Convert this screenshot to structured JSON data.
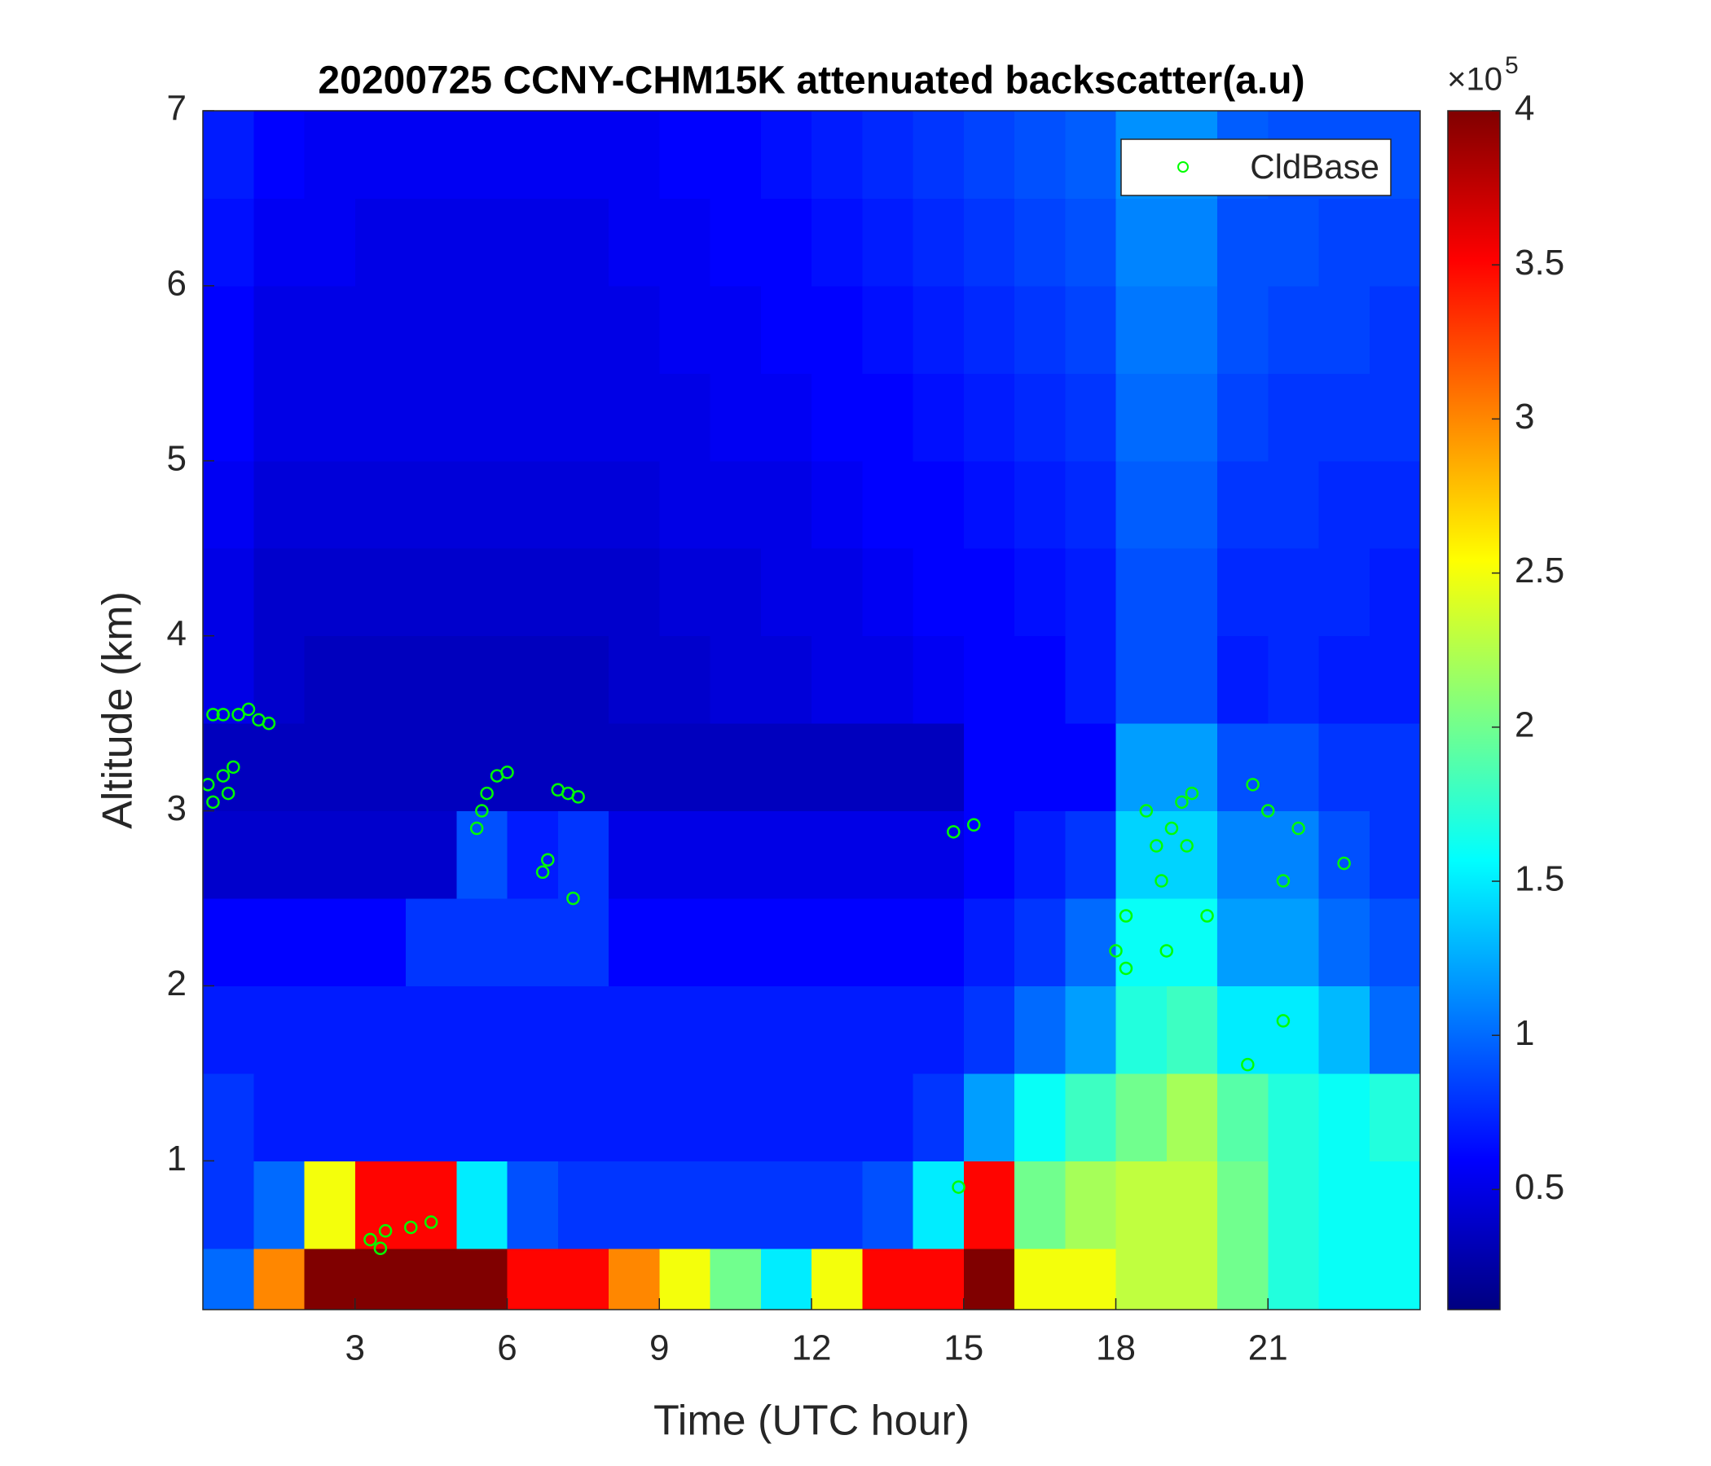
{
  "chart_data": {
    "type": "heatmap",
    "title": "20200725 CCNY-CHM15K attenuated backscatter(a.u)",
    "xlabel": "Time (UTC hour)",
    "ylabel": "Altitude (km)",
    "xlim": [
      0,
      24
    ],
    "ylim": [
      0.15,
      7
    ],
    "xticks": [
      3,
      6,
      9,
      12,
      15,
      18,
      21
    ],
    "yticks": [
      1,
      2,
      3,
      4,
      5,
      6,
      7
    ],
    "x_bins": [
      0,
      1,
      2,
      3,
      4,
      5,
      6,
      7,
      8,
      9,
      10,
      11,
      12,
      13,
      14,
      15,
      16,
      17,
      18,
      19,
      20,
      21,
      22,
      23,
      24
    ],
    "y_bins": [
      0.15,
      0.5,
      1,
      1.5,
      2,
      2.5,
      3,
      3.5,
      4,
      4.5,
      5,
      5.5,
      6,
      6.5,
      7
    ],
    "z": [
      [
        1.0,
        3.0,
        4,
        4,
        4,
        4,
        3.5,
        3.5,
        3,
        2.5,
        2,
        1.5,
        2.5,
        3.5,
        3.5,
        4,
        2.5,
        2.5,
        2.3,
        2.3,
        2.0,
        1.7,
        1.6,
        1.6
      ],
      [
        0.8,
        1.0,
        2.5,
        3.5,
        3.5,
        1.5,
        0.9,
        0.8,
        0.8,
        0.8,
        0.8,
        0.8,
        0.8,
        0.9,
        1.5,
        3.5,
        2.0,
        2.2,
        2.3,
        2.3,
        2.0,
        1.7,
        1.6,
        1.6
      ],
      [
        0.8,
        0.7,
        0.7,
        0.7,
        0.7,
        0.7,
        0.7,
        0.7,
        0.7,
        0.7,
        0.7,
        0.7,
        0.7,
        0.7,
        0.8,
        1.2,
        1.6,
        1.8,
        2.0,
        2.2,
        1.9,
        1.7,
        1.6,
        1.7
      ],
      [
        0.7,
        0.7,
        0.7,
        0.7,
        0.7,
        0.7,
        0.7,
        0.7,
        0.7,
        0.7,
        0.7,
        0.7,
        0.7,
        0.7,
        0.7,
        0.8,
        1.0,
        1.2,
        1.7,
        1.8,
        1.5,
        1.5,
        1.3,
        1.0
      ],
      [
        0.6,
        0.6,
        0.6,
        0.6,
        0.8,
        0.8,
        0.8,
        0.8,
        0.6,
        0.6,
        0.6,
        0.6,
        0.6,
        0.6,
        0.6,
        0.7,
        0.8,
        1.0,
        1.6,
        1.6,
        1.2,
        1.2,
        1.0,
        0.9
      ],
      [
        0.4,
        0.4,
        0.4,
        0.4,
        0.4,
        0.9,
        0.7,
        0.8,
        0.5,
        0.5,
        0.5,
        0.5,
        0.5,
        0.5,
        0.5,
        0.6,
        0.7,
        0.8,
        1.4,
        1.4,
        1.1,
        1.1,
        0.9,
        0.8
      ],
      [
        0.35,
        0.35,
        0.35,
        0.35,
        0.35,
        0.35,
        0.35,
        0.35,
        0.35,
        0.35,
        0.35,
        0.35,
        0.35,
        0.35,
        0.35,
        0.6,
        0.6,
        0.6,
        1.2,
        1.2,
        0.9,
        0.9,
        0.8,
        0.8
      ],
      [
        0.5,
        0.4,
        0.35,
        0.35,
        0.35,
        0.35,
        0.35,
        0.35,
        0.4,
        0.4,
        0.45,
        0.45,
        0.5,
        0.5,
        0.55,
        0.6,
        0.6,
        0.7,
        0.9,
        0.9,
        0.7,
        0.75,
        0.7,
        0.7
      ],
      [
        0.5,
        0.4,
        0.4,
        0.4,
        0.4,
        0.4,
        0.4,
        0.4,
        0.4,
        0.45,
        0.45,
        0.5,
        0.5,
        0.55,
        0.6,
        0.6,
        0.65,
        0.7,
        0.9,
        0.9,
        0.75,
        0.75,
        0.75,
        0.7
      ],
      [
        0.55,
        0.45,
        0.45,
        0.45,
        0.45,
        0.45,
        0.45,
        0.45,
        0.45,
        0.5,
        0.5,
        0.5,
        0.55,
        0.6,
        0.6,
        0.65,
        0.7,
        0.75,
        0.95,
        0.95,
        0.8,
        0.8,
        0.75,
        0.75
      ],
      [
        0.6,
        0.5,
        0.5,
        0.5,
        0.5,
        0.5,
        0.5,
        0.5,
        0.5,
        0.5,
        0.55,
        0.55,
        0.6,
        0.6,
        0.65,
        0.7,
        0.75,
        0.8,
        1.0,
        1.0,
        0.85,
        0.8,
        0.8,
        0.8
      ],
      [
        0.6,
        0.5,
        0.5,
        0.5,
        0.5,
        0.5,
        0.5,
        0.5,
        0.5,
        0.55,
        0.55,
        0.6,
        0.6,
        0.65,
        0.7,
        0.75,
        0.8,
        0.85,
        1.05,
        1.05,
        0.9,
        0.85,
        0.85,
        0.8
      ],
      [
        0.65,
        0.55,
        0.55,
        0.5,
        0.5,
        0.5,
        0.5,
        0.5,
        0.55,
        0.55,
        0.6,
        0.6,
        0.65,
        0.7,
        0.75,
        0.8,
        0.85,
        0.9,
        1.1,
        1.1,
        0.9,
        0.9,
        0.85,
        0.85
      ],
      [
        0.7,
        0.6,
        0.55,
        0.55,
        0.55,
        0.55,
        0.55,
        0.55,
        0.55,
        0.6,
        0.6,
        0.65,
        0.7,
        0.75,
        0.8,
        0.85,
        0.9,
        0.95,
        1.15,
        1.15,
        0.95,
        0.9,
        0.9,
        0.9
      ]
    ],
    "colormap": "jet",
    "clim": [
      0.11,
      4
    ],
    "cticks": [
      0.5,
      1,
      1.5,
      2,
      2.5,
      3,
      3.5,
      4
    ],
    "colorbar_multiplier": {
      "base": "×10",
      "exponent": "5"
    },
    "legend": "upper right",
    "series": [
      {
        "name": "CldBase",
        "type": "scatter",
        "color": "#00ff00",
        "x": [
          0.1,
          0.2,
          0.4,
          0.5,
          0.6,
          0.2,
          0.4,
          0.7,
          0.9,
          1.1,
          1.3,
          3.3,
          3.5,
          3.6,
          4.1,
          4.5,
          5.4,
          5.5,
          5.6,
          5.8,
          6.0,
          6.7,
          6.8,
          7.0,
          7.2,
          7.4,
          7.3,
          14.8,
          15.2,
          14.9,
          18.0,
          18.2,
          18.2,
          18.6,
          18.8,
          18.9,
          19.0,
          19.1,
          19.3,
          19.5,
          19.4,
          19.8,
          20.7,
          21.0,
          21.3,
          21.3,
          21.6,
          22.5,
          20.6
        ],
        "y": [
          3.15,
          3.05,
          3.2,
          3.1,
          3.25,
          3.55,
          3.55,
          3.55,
          3.58,
          3.52,
          3.5,
          0.55,
          0.5,
          0.6,
          0.62,
          0.65,
          2.9,
          3.0,
          3.1,
          3.2,
          3.22,
          2.65,
          2.72,
          3.12,
          3.1,
          3.08,
          2.5,
          2.88,
          2.92,
          0.85,
          2.2,
          2.4,
          2.1,
          3.0,
          2.8,
          2.6,
          2.2,
          2.9,
          3.05,
          3.1,
          2.8,
          2.4,
          3.15,
          3.0,
          2.6,
          1.8,
          2.9,
          2.7,
          1.55
        ]
      }
    ]
  }
}
